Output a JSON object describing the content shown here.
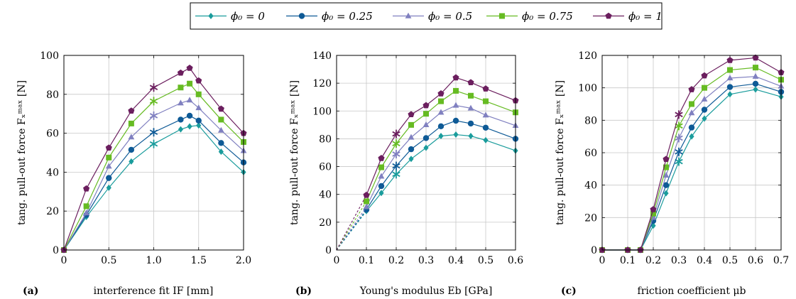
{
  "legend": {
    "entries": [
      {
        "label": "ϕ₀ = 0",
        "color": "#1a9c9c",
        "marker": "diamond"
      },
      {
        "label": "ϕ₀ = 0.25",
        "color": "#0e5a96",
        "marker": "circle"
      },
      {
        "label": "ϕ₀ = 0.5",
        "color": "#8080c0",
        "marker": "triangle"
      },
      {
        "label": "ϕ₀ = 0.75",
        "color": "#66bb22",
        "marker": "square"
      },
      {
        "label": "ϕ₀ = 1",
        "color": "#6b1e5e",
        "marker": "pentagon"
      }
    ]
  },
  "chart_data": [
    {
      "type": "line",
      "panel_label": "(a)",
      "xlabel": "interference fit IF [mm]",
      "ylabel": "tang. pull-out force Fₓᵐᵃˣ [N]",
      "xlim": [
        0,
        2.0
      ],
      "ylim": [
        0,
        100
      ],
      "xticks": [
        0,
        0.5,
        1.0,
        1.5,
        2.0
      ],
      "xtick_labels": [
        "0",
        "0.5",
        "1.0",
        "1.5",
        "2.0"
      ],
      "yticks": [
        0,
        20,
        40,
        60,
        80,
        100
      ],
      "ytick_labels": [
        "0",
        "20",
        "40",
        "60",
        "80",
        "100"
      ],
      "grid": true,
      "x": [
        0,
        0.25,
        0.5,
        0.75,
        1.0,
        1.3,
        1.4,
        1.5,
        1.75,
        2.0
      ],
      "star_x": 1.0,
      "series": [
        {
          "name": "ϕ₀ = 0",
          "values": [
            0,
            17,
            32,
            45.5,
            54.5,
            62,
            63.5,
            64,
            50.5,
            40
          ]
        },
        {
          "name": "ϕ₀ = 0.25",
          "values": [
            0,
            18,
            37,
            51.5,
            60.5,
            67,
            69,
            66.5,
            55,
            45
          ]
        },
        {
          "name": "ϕ₀ = 0.5",
          "values": [
            0,
            19,
            43,
            58,
            69,
            75.5,
            77,
            73,
            61.5,
            51
          ]
        },
        {
          "name": "ϕ₀ = 0.75",
          "values": [
            0,
            22.5,
            47.5,
            65,
            76.5,
            83.5,
            85.5,
            80,
            67,
            55.5
          ]
        },
        {
          "name": "ϕ₀ = 1",
          "values": [
            0,
            31.5,
            52.5,
            71.5,
            83.5,
            91,
            93.5,
            87,
            72.5,
            60
          ]
        }
      ]
    },
    {
      "type": "line",
      "panel_label": "(b)",
      "xlabel": "Young's modulus Eb [GPa]",
      "ylabel": "tang. pull-out force Fₓᵐᵃˣ [N]",
      "xlim": [
        0,
        0.6
      ],
      "ylim": [
        0,
        140
      ],
      "xticks": [
        0,
        0.1,
        0.2,
        0.3,
        0.4,
        0.5,
        0.6
      ],
      "xtick_labels": [
        "0",
        "0.1",
        "0.2",
        "0.3",
        "0.4",
        "0.5",
        "0.6"
      ],
      "yticks": [
        0,
        20,
        40,
        60,
        80,
        100,
        120,
        140
      ],
      "ytick_labels": [
        "0",
        "20",
        "40",
        "60",
        "80",
        "100",
        "120",
        "140"
      ],
      "grid": true,
      "x": [
        0.1,
        0.15,
        0.2,
        0.25,
        0.3,
        0.35,
        0.4,
        0.45,
        0.5,
        0.6
      ],
      "star_x": 0.2,
      "dashed_from_origin": true,
      "series": [
        {
          "name": "ϕ₀ = 0",
          "values": [
            28,
            41,
            54.5,
            65.5,
            73.5,
            82,
            83,
            82,
            79,
            71.5
          ]
        },
        {
          "name": "ϕ₀ = 0.25",
          "values": [
            29,
            46,
            60.5,
            72.5,
            80.5,
            89,
            93,
            91,
            88,
            80
          ]
        },
        {
          "name": "ϕ₀ = 0.5",
          "values": [
            31,
            53,
            69,
            81,
            90,
            99,
            104,
            102,
            97,
            89.5
          ]
        },
        {
          "name": "ϕ₀ = 0.75",
          "values": [
            35,
            59.5,
            76.5,
            90,
            98,
            107,
            114.5,
            111,
            107,
            99
          ]
        },
        {
          "name": "ϕ₀ = 1",
          "values": [
            39.5,
            66,
            83.5,
            97.5,
            104,
            112.5,
            124,
            120.5,
            116,
            107.5
          ]
        }
      ]
    },
    {
      "type": "line",
      "panel_label": "(c)",
      "xlabel": "friction coefficient μb",
      "ylabel": "tang. pull-out force Fₓᵐᵃˣ [N]",
      "xlim": [
        0,
        0.7
      ],
      "ylim": [
        0,
        120
      ],
      "xticks": [
        0,
        0.1,
        0.2,
        0.3,
        0.4,
        0.5,
        0.6,
        0.7
      ],
      "xtick_labels": [
        "0",
        "0.1",
        "0.2",
        "0.3",
        "0.4",
        "0.5",
        "0.6",
        "0.7"
      ],
      "yticks": [
        0,
        20,
        40,
        60,
        80,
        100,
        120
      ],
      "ytick_labels": [
        "0",
        "20",
        "40",
        "60",
        "80",
        "100",
        "120"
      ],
      "grid": true,
      "x": [
        0,
        0.1,
        0.15,
        0.2,
        0.25,
        0.3,
        0.35,
        0.4,
        0.5,
        0.6,
        0.7
      ],
      "star_x": 0.3,
      "series": [
        {
          "name": "ϕ₀ = 0",
          "values": [
            0,
            0,
            0,
            15,
            35,
            54.5,
            70,
            81,
            96,
            99,
            94.5
          ]
        },
        {
          "name": "ϕ₀ = 0.25",
          "values": [
            0,
            0,
            0,
            18,
            40,
            60.5,
            75.5,
            86.5,
            100.5,
            102.5,
            97.5
          ]
        },
        {
          "name": "ϕ₀ = 0.5",
          "values": [
            0,
            0,
            0,
            20,
            46,
            69,
            84.5,
            93,
            106,
            107,
            101
          ]
        },
        {
          "name": "ϕ₀ = 0.75",
          "values": [
            0,
            0,
            0,
            22.5,
            51,
            76.5,
            90,
            100,
            111,
            112.5,
            105
          ]
        },
        {
          "name": "ϕ₀ = 1",
          "values": [
            0,
            0,
            0,
            25,
            56,
            83.5,
            99,
            107.5,
            117,
            118.5,
            109.5
          ]
        }
      ]
    }
  ]
}
